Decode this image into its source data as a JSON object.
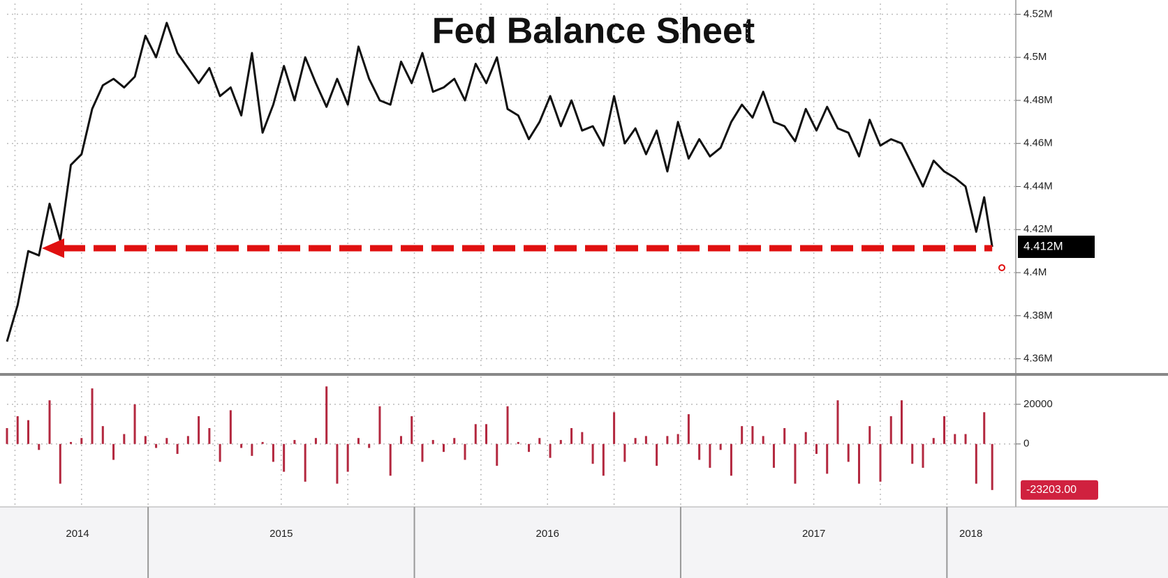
{
  "chart_data": [
    {
      "type": "line",
      "title": "Fed Balance Sheet",
      "color": "#111111",
      "last_label": "4.412M",
      "x": [
        2014.47,
        2014.51,
        2014.55,
        2014.59,
        2014.63,
        2014.67,
        2014.71,
        2014.75,
        2014.79,
        2014.83,
        2014.87,
        2014.91,
        2014.95,
        2014.99,
        2015.03,
        2015.07,
        2015.11,
        2015.15,
        2015.19,
        2015.23,
        2015.27,
        2015.31,
        2015.35,
        2015.39,
        2015.43,
        2015.47,
        2015.51,
        2015.55,
        2015.59,
        2015.63,
        2015.67,
        2015.71,
        2015.75,
        2015.79,
        2015.83,
        2015.87,
        2015.91,
        2015.95,
        2015.99,
        2016.03,
        2016.07,
        2016.11,
        2016.15,
        2016.19,
        2016.23,
        2016.27,
        2016.31,
        2016.35,
        2016.39,
        2016.43,
        2016.47,
        2016.51,
        2016.55,
        2016.59,
        2016.63,
        2016.67,
        2016.71,
        2016.75,
        2016.79,
        2016.83,
        2016.87,
        2016.91,
        2016.95,
        2016.99,
        2017.03,
        2017.07,
        2017.11,
        2017.15,
        2017.19,
        2017.23,
        2017.27,
        2017.31,
        2017.35,
        2017.39,
        2017.43,
        2017.47,
        2017.51,
        2017.55,
        2017.59,
        2017.63,
        2017.67,
        2017.71,
        2017.75,
        2017.79,
        2017.83,
        2017.87,
        2017.91,
        2017.95,
        2017.99,
        2018.03,
        2018.07,
        2018.11,
        2018.14,
        2018.17
      ],
      "values": [
        4.368,
        4.385,
        4.41,
        4.408,
        4.432,
        4.415,
        4.45,
        4.455,
        4.476,
        4.487,
        4.49,
        4.486,
        4.491,
        4.51,
        4.5,
        4.516,
        4.502,
        4.495,
        4.488,
        4.495,
        4.482,
        4.486,
        4.473,
        4.502,
        4.465,
        4.478,
        4.496,
        4.48,
        4.5,
        4.488,
        4.477,
        4.49,
        4.478,
        4.505,
        4.49,
        4.48,
        4.478,
        4.498,
        4.488,
        4.502,
        4.484,
        4.486,
        4.49,
        4.48,
        4.497,
        4.488,
        4.5,
        4.476,
        4.473,
        4.462,
        4.47,
        4.482,
        4.468,
        4.48,
        4.466,
        4.468,
        4.459,
        4.482,
        4.46,
        4.467,
        4.455,
        4.466,
        4.447,
        4.47,
        4.453,
        4.462,
        4.454,
        4.458,
        4.47,
        4.478,
        4.472,
        4.484,
        4.47,
        4.468,
        4.461,
        4.476,
        4.466,
        4.477,
        4.467,
        4.465,
        4.454,
        4.471,
        4.459,
        4.462,
        4.46,
        4.45,
        4.44,
        4.452,
        4.447,
        4.444,
        4.44,
        4.419,
        4.435,
        4.412
      ],
      "xlim": [
        2014.47,
        2018.18
      ],
      "ylim": [
        4.355,
        4.525
      ],
      "yticks": [
        {
          "value": 4.36,
          "label": "4.36M"
        },
        {
          "value": 4.38,
          "label": "4.38M"
        },
        {
          "value": 4.4,
          "label": "4.4M"
        },
        {
          "value": 4.42,
          "label": "4.42M"
        },
        {
          "value": 4.44,
          "label": "4.44M"
        },
        {
          "value": 4.46,
          "label": "4.46M"
        },
        {
          "value": 4.48,
          "label": "4.48M"
        },
        {
          "value": 4.5,
          "label": "4.5M"
        },
        {
          "value": 4.52,
          "label": "4.52M"
        }
      ],
      "grid": true
    },
    {
      "type": "bar",
      "color": "#b3283f",
      "last_label": "-23203.00",
      "x": [
        2014.47,
        2014.51,
        2014.55,
        2014.59,
        2014.63,
        2014.67,
        2014.71,
        2014.75,
        2014.79,
        2014.83,
        2014.87,
        2014.91,
        2014.95,
        2014.99,
        2015.03,
        2015.07,
        2015.11,
        2015.15,
        2015.19,
        2015.23,
        2015.27,
        2015.31,
        2015.35,
        2015.39,
        2015.43,
        2015.47,
        2015.51,
        2015.55,
        2015.59,
        2015.63,
        2015.67,
        2015.71,
        2015.75,
        2015.79,
        2015.83,
        2015.87,
        2015.91,
        2015.95,
        2015.99,
        2016.03,
        2016.07,
        2016.11,
        2016.15,
        2016.19,
        2016.23,
        2016.27,
        2016.31,
        2016.35,
        2016.39,
        2016.43,
        2016.47,
        2016.51,
        2016.55,
        2016.59,
        2016.63,
        2016.67,
        2016.71,
        2016.75,
        2016.79,
        2016.83,
        2016.87,
        2016.91,
        2016.95,
        2016.99,
        2017.03,
        2017.07,
        2017.11,
        2017.15,
        2017.19,
        2017.23,
        2017.27,
        2017.31,
        2017.35,
        2017.39,
        2017.43,
        2017.47,
        2017.51,
        2017.55,
        2017.59,
        2017.63,
        2017.67,
        2017.71,
        2017.75,
        2017.79,
        2017.83,
        2017.87,
        2017.91,
        2017.95,
        2017.99,
        2018.03,
        2018.07,
        2018.11,
        2018.14,
        2018.17
      ],
      "values": [
        8000,
        14000,
        12000,
        -3000,
        22000,
        -20000,
        1000,
        3000,
        28000,
        9000,
        -8000,
        5000,
        20000,
        4000,
        -2000,
        3000,
        -5000,
        4000,
        14000,
        8000,
        -9000,
        17000,
        -2000,
        -6000,
        1000,
        -9000,
        -14000,
        2000,
        -19000,
        3000,
        29000,
        -20000,
        -14000,
        3000,
        -2000,
        19000,
        -16000,
        4000,
        14000,
        -9000,
        2000,
        -4000,
        3000,
        -8000,
        10000,
        10000,
        -11000,
        19000,
        1000,
        -4000,
        3000,
        -7000,
        2000,
        8000,
        6000,
        -10000,
        -16000,
        16000,
        -9000,
        3000,
        4000,
        -11000,
        4000,
        5000,
        15000,
        -8000,
        -12000,
        -3000,
        -16000,
        9000,
        9000,
        4000,
        -12000,
        8000,
        -20000,
        6000,
        -5000,
        -15000,
        22000,
        -9000,
        -20000,
        9000,
        -19000,
        14000,
        22000,
        -10000,
        -12000,
        3000,
        14000,
        5000,
        5000,
        -20000,
        16000,
        -23203
      ],
      "xlim": [
        2014.47,
        2018.18
      ],
      "ylim": [
        -31000,
        34000
      ],
      "yticks": [
        20000,
        0
      ],
      "xticks": [
        2015,
        2016,
        2017,
        2018
      ],
      "x_labels": [
        "2014",
        "2015",
        "2016",
        "2017",
        "2018"
      ],
      "grid": true
    }
  ]
}
